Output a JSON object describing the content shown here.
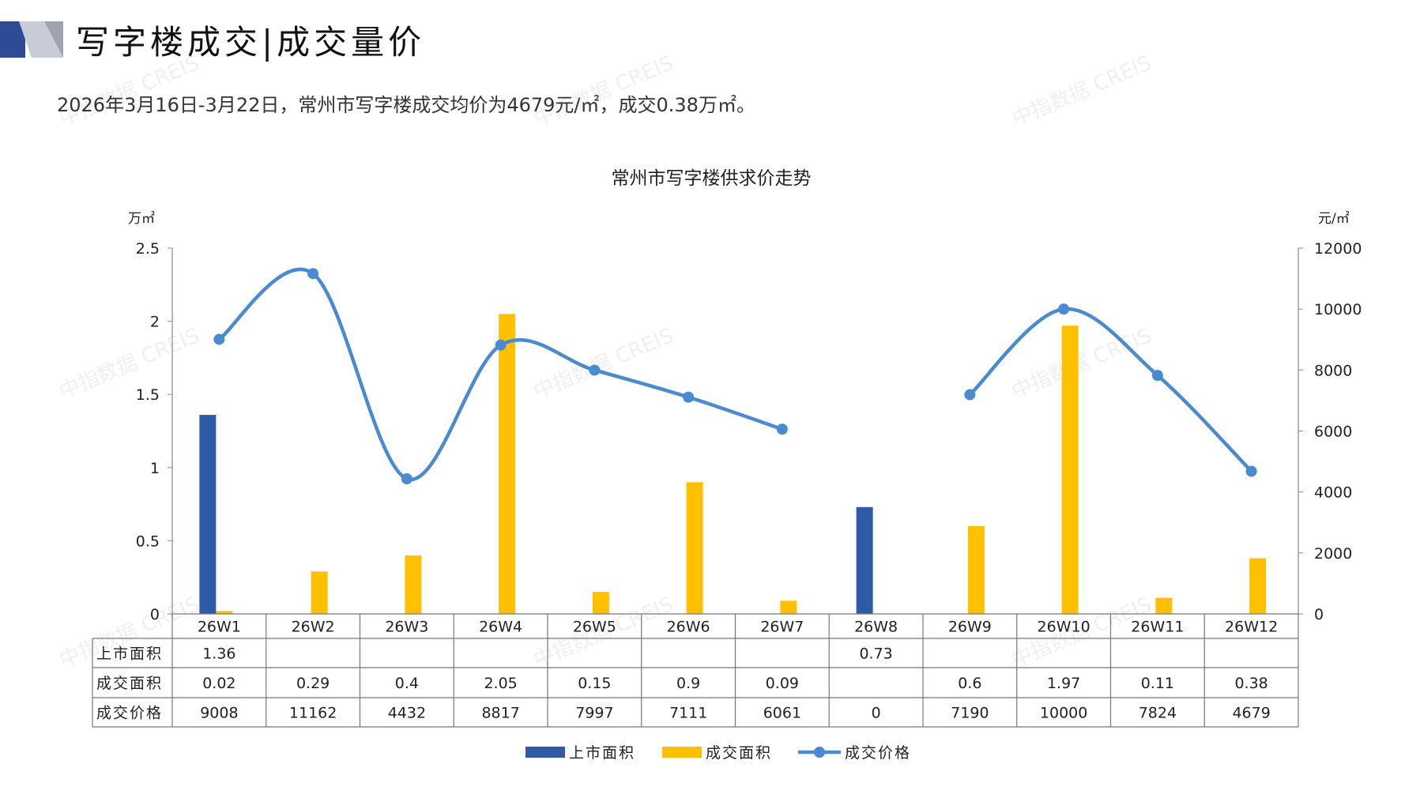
{
  "header": {
    "title": "写字楼成交|成交量价",
    "summary": "2026年3月16日-3月22日，常州市写字楼成交均价为4679元/㎡，成交0.38万㎡。"
  },
  "watermark": "中指数据 CREIS",
  "colors": {
    "listing": "#2E5AA8",
    "deal_area": "#FFC000",
    "price": "#4A8AD0",
    "logo_dark": "#2E4C96",
    "logo_light": "#C9CCD6"
  },
  "chart_data": {
    "type": "bar+line",
    "title": "常州市写字楼供求价走势",
    "left_unit": "万㎡",
    "right_unit": "元/㎡",
    "categories": [
      "26W1",
      "26W2",
      "26W3",
      "26W4",
      "26W5",
      "26W6",
      "26W7",
      "26W8",
      "26W9",
      "26W10",
      "26W11",
      "26W12"
    ],
    "left_ylim": [
      0,
      2.5
    ],
    "left_ticks": [
      "0",
      "0.5",
      "1",
      "1.5",
      "2",
      "2.5"
    ],
    "right_ylim": [
      0,
      12000
    ],
    "right_ticks": [
      "0",
      "2000",
      "4000",
      "6000",
      "8000",
      "10000",
      "12000"
    ],
    "series": [
      {
        "name": "上市面积",
        "type": "bar",
        "axis": "left",
        "values": [
          1.36,
          null,
          null,
          null,
          null,
          null,
          null,
          0.73,
          null,
          null,
          null,
          null
        ],
        "labels": [
          "1.36",
          "",
          "",
          "",
          "",
          "",
          "",
          "0.73",
          "",
          "",
          "",
          ""
        ]
      },
      {
        "name": "成交面积",
        "type": "bar",
        "axis": "left",
        "values": [
          0.02,
          0.29,
          0.4,
          2.05,
          0.15,
          0.9,
          0.09,
          null,
          0.6,
          1.97,
          0.11,
          0.38
        ],
        "labels": [
          "0.02",
          "0.29",
          "0.4",
          "2.05",
          "0.15",
          "0.9",
          "0.09",
          "",
          "0.6",
          "1.97",
          "0.11",
          "0.38"
        ]
      },
      {
        "name": "成交价格",
        "type": "line",
        "axis": "right",
        "values": [
          9008,
          11162,
          4432,
          8817,
          7997,
          7111,
          6061,
          0,
          7190,
          10000,
          7824,
          4679
        ],
        "labels": [
          "9008",
          "11162",
          "4432",
          "8817",
          "7997",
          "7111",
          "6061",
          "0",
          "7190",
          "10000",
          "7824",
          "4679"
        ]
      }
    ],
    "legend_position": "bottom"
  }
}
